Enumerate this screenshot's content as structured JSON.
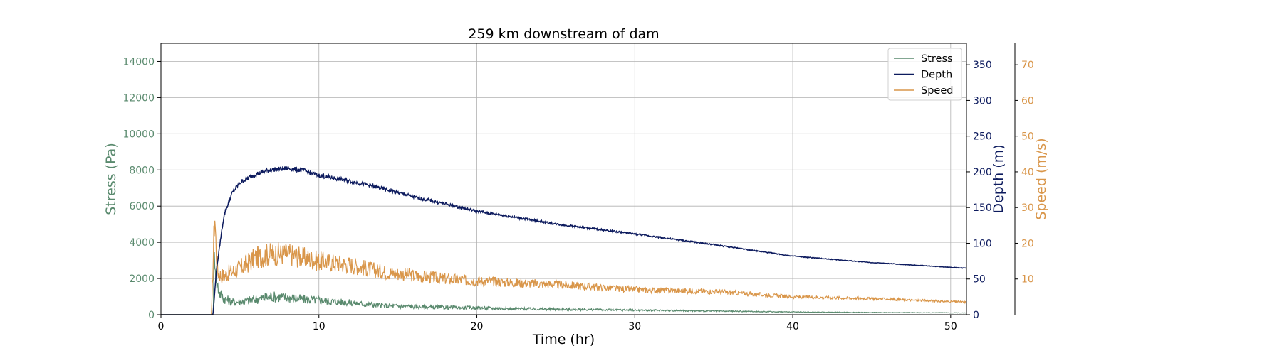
{
  "chart_data": {
    "type": "line",
    "title": "259 km downstream of dam",
    "xlabel": "Time (hr)",
    "xlim": [
      0,
      51
    ],
    "xticks": [
      0,
      10,
      20,
      30,
      40,
      50
    ],
    "grid": true,
    "legend_position": "top-right",
    "axes": {
      "stress": {
        "label": "Stress (Pa)",
        "side": "left",
        "ylim": [
          0,
          15000
        ],
        "ticks": [
          0,
          2000,
          4000,
          6000,
          8000,
          10000,
          12000,
          14000
        ],
        "color": "#5a8a6e"
      },
      "depth": {
        "label": "Depth (m)",
        "side": "right",
        "ylim": [
          0,
          380
        ],
        "ticks": [
          0,
          50,
          100,
          150,
          200,
          250,
          300,
          350
        ],
        "color": "#0d1b5e"
      },
      "speed": {
        "label": "Speed (m/s)",
        "side": "right-outer",
        "ylim": [
          0,
          76
        ],
        "ticks": [
          10,
          20,
          30,
          40,
          50,
          60,
          70
        ],
        "color": "#d9964a"
      }
    },
    "series": [
      {
        "name": "Stress",
        "axis": "stress",
        "color": "#5a8a6e",
        "x": [
          0,
          3.3,
          3.4,
          3.5,
          3.7,
          4,
          4.5,
          5,
          6,
          7,
          8,
          9,
          10,
          12,
          14,
          16,
          18,
          20,
          22,
          25,
          30,
          35,
          40,
          45,
          51
        ],
        "y": [
          0,
          0,
          3800,
          1900,
          1200,
          900,
          700,
          700,
          850,
          1000,
          950,
          850,
          800,
          650,
          500,
          450,
          400,
          380,
          330,
          300,
          250,
          200,
          150,
          120,
          100
        ]
      },
      {
        "name": "Depth",
        "axis": "depth",
        "color": "#0d1b5e",
        "x": [
          0,
          3.3,
          3.5,
          3.8,
          4,
          4.5,
          5,
          6,
          7,
          8,
          9,
          10,
          12,
          14,
          16,
          18,
          20,
          22,
          25,
          30,
          35,
          40,
          45,
          51
        ],
        "y": [
          0,
          0,
          60,
          110,
          140,
          170,
          185,
          197,
          203,
          205,
          202,
          195,
          187,
          177,
          165,
          155,
          145,
          138,
          127,
          113,
          98,
          82,
          73,
          65
        ]
      },
      {
        "name": "Speed",
        "axis": "speed",
        "color": "#d9964a",
        "x": [
          0,
          3.2,
          3.4,
          3.5,
          3.6,
          3.8,
          4,
          4.5,
          5,
          6,
          7,
          8,
          9,
          10,
          12,
          14,
          16,
          18,
          20,
          22,
          25,
          30,
          35,
          40,
          45,
          51
        ],
        "y": [
          0,
          0,
          29,
          18,
          12,
          11,
          11,
          12,
          13,
          16,
          17,
          17,
          16,
          15,
          14,
          12,
          11,
          10,
          9.5,
          9,
          8.5,
          7,
          6.5,
          5,
          4.5,
          3.5
        ]
      }
    ]
  }
}
